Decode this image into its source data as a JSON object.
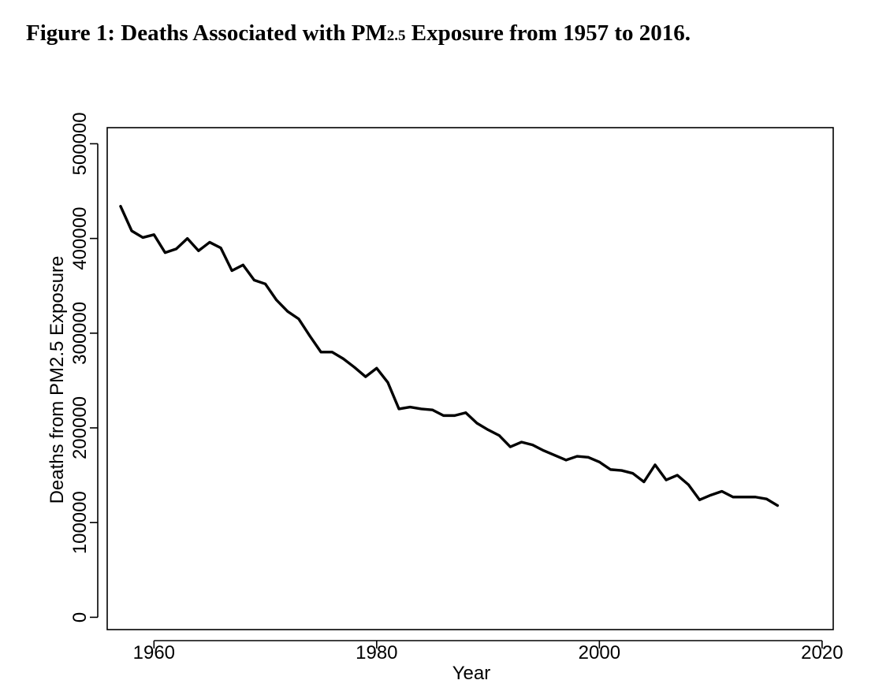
{
  "figure": {
    "title_prefix": "Figure 1: Deaths Associated with PM",
    "title_subscript": "2.5",
    "title_suffix": " Exposure from 1957 to 2016."
  },
  "chart_data": {
    "type": "line",
    "title": "Figure 1: Deaths Associated with PM2.5 Exposure from 1957 to 2016.",
    "xlabel": "Year",
    "ylabel": "Deaths from PM2.5 Exposure",
    "xlim": [
      1955.8,
      2021.0
    ],
    "ylim": [
      -13000,
      517000
    ],
    "xticks": [
      1960,
      1980,
      2000,
      2020
    ],
    "yticks": [
      0,
      100000,
      200000,
      300000,
      400000,
      500000
    ],
    "grid": false,
    "line_color": "#000000",
    "series": [
      {
        "name": "Deaths from PM2.5 Exposure",
        "x": [
          1957,
          1958,
          1959,
          1960,
          1961,
          1962,
          1963,
          1964,
          1965,
          1966,
          1967,
          1968,
          1969,
          1970,
          1971,
          1972,
          1973,
          1974,
          1975,
          1976,
          1977,
          1978,
          1979,
          1980,
          1981,
          1982,
          1983,
          1984,
          1985,
          1986,
          1987,
          1988,
          1989,
          1990,
          1991,
          1992,
          1993,
          1994,
          1995,
          1996,
          1997,
          1998,
          1999,
          2000,
          2001,
          2002,
          2003,
          2004,
          2005,
          2006,
          2007,
          2008,
          2009,
          2010,
          2011,
          2012,
          2013,
          2014,
          2015,
          2016
        ],
        "y": [
          434000,
          408000,
          401000,
          404000,
          385000,
          389000,
          400000,
          387000,
          396000,
          390000,
          366000,
          372000,
          356000,
          352000,
          335000,
          323000,
          315000,
          297000,
          280000,
          280000,
          273000,
          264000,
          254000,
          263000,
          248000,
          220000,
          222000,
          220000,
          219000,
          213000,
          213000,
          216000,
          205000,
          198000,
          192000,
          180000,
          185000,
          182000,
          176000,
          171000,
          166000,
          170000,
          169000,
          164000,
          156000,
          155000,
          152000,
          143000,
          161000,
          145000,
          150000,
          140000,
          124000,
          129000,
          133000,
          127000,
          127000,
          127000,
          125000,
          118000
        ]
      }
    ]
  }
}
